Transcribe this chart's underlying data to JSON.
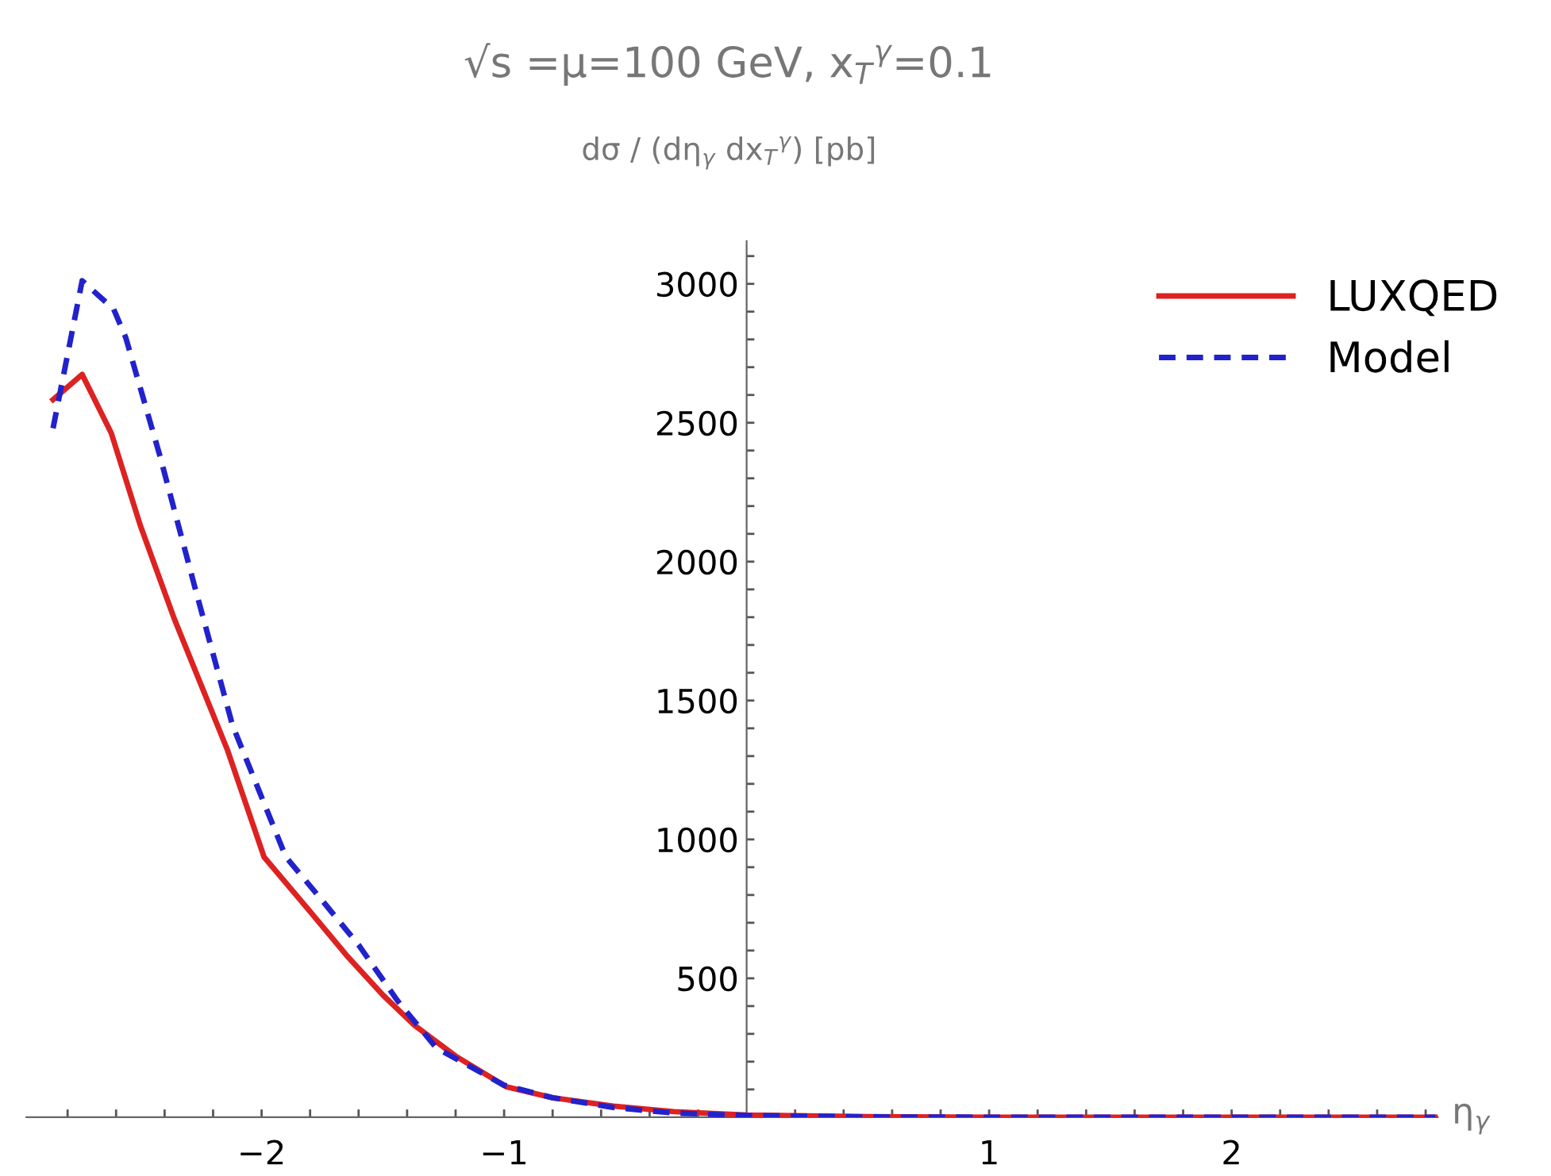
{
  "chart_data": {
    "type": "line",
    "title": "√s =μ=100 GeV, x$_{T}$$^{γ}$=0.1",
    "ylabel": "dσ / (dη$_{γ}$ dx$_{T}$$^{γ}$) [pb]",
    "xlabel": "η$_{γ}$",
    "series": [
      {
        "name": "LUXQED",
        "color": "#dd2222",
        "line_style": "solid",
        "x": [
          -2.86,
          -2.74,
          -2.62,
          -2.5,
          -2.36,
          -2.14,
          -1.99,
          -1.8,
          -1.65,
          -1.5,
          -1.37,
          -1.2,
          -0.99,
          -0.8,
          -0.55,
          -0.3,
          0,
          0.5,
          1,
          1.5,
          2,
          2.5,
          2.84
        ],
        "values": [
          2583,
          2674,
          2463,
          2130,
          1794,
          1320,
          937,
          740,
          583,
          440,
          331,
          220,
          109,
          70,
          40,
          20,
          8,
          2,
          0,
          0,
          0,
          0,
          0
        ]
      },
      {
        "name": "Model",
        "color": "#2222cc",
        "line_style": "dashed",
        "x": [
          -2.86,
          -2.74,
          -2.61,
          -2.56,
          -2.42,
          -2.27,
          -2.12,
          -1.9,
          -1.75,
          -1.6,
          -1.44,
          -1.28,
          -1.0,
          -0.8,
          -0.55,
          -0.3,
          0,
          0.5,
          1,
          1.5,
          2,
          2.5,
          2.84
        ],
        "values": [
          2480,
          3011,
          2909,
          2806,
          2383,
          1891,
          1411,
          937,
          780,
          620,
          420,
          250,
          115,
          70,
          35,
          15,
          6,
          1,
          0,
          0,
          0,
          0,
          0
        ]
      }
    ],
    "xlim": [
      -2.97,
      2.85
    ],
    "ylim": [
      0,
      3154
    ],
    "xticks": [
      {
        "value": -2.8,
        "label": null
      },
      {
        "value": -2.6,
        "label": null
      },
      {
        "value": -2.4,
        "label": null
      },
      {
        "value": -2.2,
        "label": null
      },
      {
        "value": -2,
        "label": "−2"
      },
      {
        "value": -1.8,
        "label": null
      },
      {
        "value": -1.6,
        "label": null
      },
      {
        "value": -1.4,
        "label": null
      },
      {
        "value": -1.2,
        "label": null
      },
      {
        "value": -1,
        "label": "−1"
      },
      {
        "value": -0.8,
        "label": null
      },
      {
        "value": -0.6,
        "label": null
      },
      {
        "value": -0.4,
        "label": null
      },
      {
        "value": -0.2,
        "label": null
      },
      {
        "value": 0.2,
        "label": null
      },
      {
        "value": 0.4,
        "label": null
      },
      {
        "value": 0.6,
        "label": null
      },
      {
        "value": 0.8,
        "label": null
      },
      1,
      {
        "value": 1.2,
        "label": null
      },
      {
        "value": 1.4,
        "label": null
      },
      {
        "value": 1.6,
        "label": null
      },
      {
        "value": 1.8,
        "label": null
      },
      2,
      {
        "value": 2.2,
        "label": null
      },
      {
        "value": 2.4,
        "label": null
      },
      {
        "value": 2.6,
        "label": null
      },
      {
        "value": 2.8,
        "label": null
      }
    ],
    "yticks": [
      {
        "value": 100,
        "label": null
      },
      {
        "value": 200,
        "label": null
      },
      {
        "value": 300,
        "label": null
      },
      {
        "value": 400,
        "label": null
      },
      500,
      {
        "value": 600,
        "label": null
      },
      {
        "value": 700,
        "label": null
      },
      {
        "value": 800,
        "label": null
      },
      {
        "value": 900,
        "label": null
      },
      1000,
      {
        "value": 1100,
        "label": null
      },
      {
        "value": 1200,
        "label": null
      },
      {
        "value": 1300,
        "label": null
      },
      {
        "value": 1400,
        "label": null
      },
      1500,
      {
        "value": 1600,
        "label": null
      },
      {
        "value": 1700,
        "label": null
      },
      {
        "value": 1800,
        "label": null
      },
      {
        "value": 1900,
        "label": null
      },
      2000,
      {
        "value": 2100,
        "label": null
      },
      {
        "value": 2200,
        "label": null
      },
      {
        "value": 2300,
        "label": null
      },
      {
        "value": 2400,
        "label": null
      },
      2500,
      {
        "value": 2600,
        "label": null
      },
      {
        "value": 2700,
        "label": null
      },
      {
        "value": 2800,
        "label": null
      },
      {
        "value": 2900,
        "label": null
      },
      3000,
      {
        "value": 3100,
        "label": null
      }
    ],
    "grid": false,
    "legend": "top right"
  }
}
